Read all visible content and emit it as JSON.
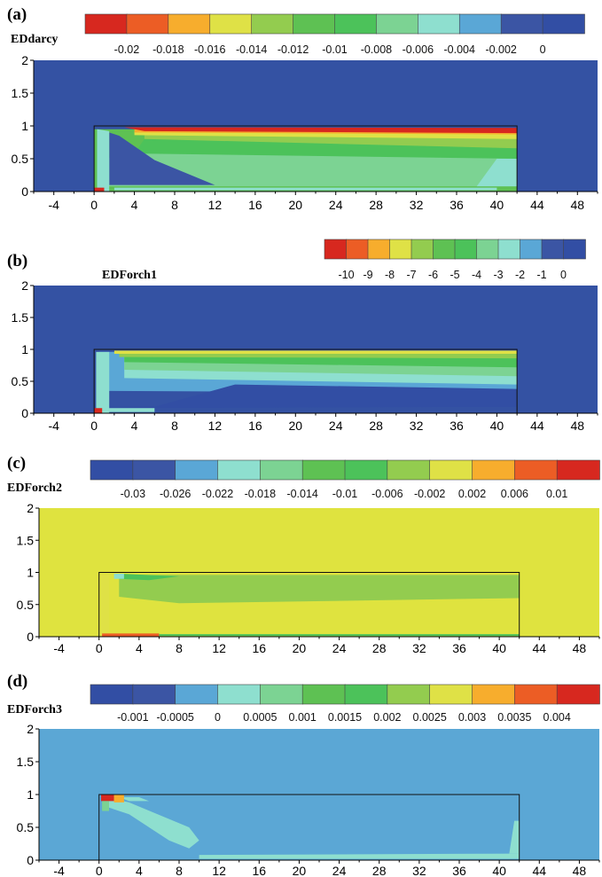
{
  "chart_data": [
    {
      "type": "heatmap",
      "panel_label": "(a)",
      "variable": "EDdarcy",
      "colorbar": {
        "ticks": [
          "-0.02",
          "-0.018",
          "-0.016",
          "-0.014",
          "-0.012",
          "-0.01",
          "-0.008",
          "-0.006",
          "-0.004",
          "-0.002",
          "0"
        ],
        "colors": [
          "#d7281f",
          "#ec5d25",
          "#f7ad2d",
          "#dfe146",
          "#93cc4f",
          "#5ec153",
          "#4cc25a",
          "#7cd393",
          "#8edfcf",
          "#5aa7d6",
          "#3b55a4",
          "#324ea4"
        ]
      },
      "x_ticks": [
        -4,
        0,
        4,
        8,
        12,
        16,
        20,
        24,
        28,
        32,
        36,
        40,
        44,
        48
      ],
      "y_ticks": [
        0,
        0.5,
        1,
        1.5,
        2
      ],
      "xlim": [
        -6,
        50
      ],
      "ylim": [
        0,
        2
      ],
      "background_color": "#3452a3",
      "channel": [
        0,
        42,
        0,
        1
      ]
    },
    {
      "type": "heatmap",
      "panel_label": "(b)",
      "variable": "EDForch1",
      "colorbar": {
        "ticks": [
          "-10",
          "-9",
          "-8",
          "-7",
          "-6",
          "-5",
          "-4",
          "-3",
          "-2",
          "-1",
          "0"
        ],
        "colors": [
          "#d7281f",
          "#ec5d25",
          "#f7ad2d",
          "#dfe146",
          "#93cc4f",
          "#5ec153",
          "#4cc25a",
          "#7cd393",
          "#8edfcf",
          "#5aa7d6",
          "#3b55a4",
          "#324ea4"
        ]
      },
      "x_ticks": [
        -4,
        0,
        4,
        8,
        12,
        16,
        20,
        24,
        28,
        32,
        36,
        40,
        44,
        48
      ],
      "y_ticks": [
        0,
        0.5,
        1,
        1.5,
        2
      ],
      "xlim": [
        -6,
        50
      ],
      "ylim": [
        0,
        2
      ],
      "background_color": "#3452a3",
      "channel": [
        0,
        42,
        0,
        1
      ]
    },
    {
      "type": "heatmap",
      "panel_label": "(c)",
      "variable": "EDForch2",
      "colorbar": {
        "ticks": [
          "-0.03",
          "-0.026",
          "-0.022",
          "-0.018",
          "-0.014",
          "-0.01",
          "-0.006",
          "-0.002",
          "0.002",
          "0.006",
          "0.01"
        ],
        "colors": [
          "#324ea4",
          "#3b55a4",
          "#5aa7d6",
          "#8edfcf",
          "#7cd393",
          "#5ec153",
          "#4cc25a",
          "#93cc4f",
          "#dfe146",
          "#f7ad2d",
          "#ec5d25",
          "#d7281f"
        ]
      },
      "x_ticks": [
        -4,
        0,
        4,
        8,
        12,
        16,
        20,
        24,
        28,
        32,
        36,
        40,
        44,
        48
      ],
      "y_ticks": [
        0,
        0.5,
        1,
        1.5,
        2
      ],
      "xlim": [
        -6,
        50
      ],
      "ylim": [
        0,
        2
      ],
      "background_color": "#dfe33f",
      "channel": [
        0,
        42,
        0,
        1
      ]
    },
    {
      "type": "heatmap",
      "panel_label": "(d)",
      "variable": "EDForch3",
      "colorbar": {
        "ticks": [
          "-0.001",
          "-0.0005",
          "0",
          "0.0005",
          "0.001",
          "0.0015",
          "0.002",
          "0.0025",
          "0.003",
          "0.0035",
          "0.004"
        ],
        "colors": [
          "#324ea4",
          "#3b55a4",
          "#5aa7d6",
          "#8edfcf",
          "#7cd393",
          "#5ec153",
          "#4cc25a",
          "#93cc4f",
          "#dfe146",
          "#f7ad2d",
          "#ec5d25",
          "#d7281f"
        ]
      },
      "x_ticks": [
        -4,
        0,
        4,
        8,
        12,
        16,
        20,
        24,
        28,
        32,
        36,
        40,
        44,
        48
      ],
      "y_ticks": [
        0,
        0.5,
        1,
        1.5,
        2
      ],
      "xlim": [
        -6,
        50
      ],
      "ylim": [
        0,
        2
      ],
      "background_color": "#5ba7d5",
      "channel": [
        0,
        42,
        0,
        1
      ]
    }
  ]
}
